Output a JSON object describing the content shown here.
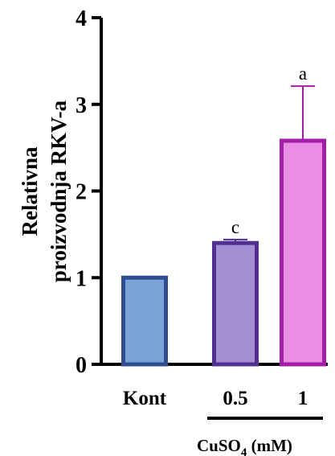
{
  "chart_data": {
    "type": "bar",
    "categories": [
      "Kont",
      "0.5",
      "1"
    ],
    "values": [
      1.0,
      1.4,
      2.58
    ],
    "errors": [
      0.0,
      0.04,
      0.63
    ],
    "significance": [
      "",
      "c",
      "a"
    ],
    "fill_colors": [
      "#7aa3d8",
      "#a58fd4",
      "#ea8ee6"
    ],
    "stroke_colors": [
      "#2d4e8e",
      "#523092",
      "#a21ea6"
    ],
    "ylabel_line1": "Relativna",
    "ylabel_line2": "proizvodnja RKV-a",
    "ylim": [
      0,
      4
    ],
    "yticks": [
      "0",
      "1",
      "2",
      "3",
      "4"
    ],
    "group_label_main": "CuSO",
    "group_label_sub": "4",
    "group_label_unit": " (mM)",
    "grid": false
  }
}
